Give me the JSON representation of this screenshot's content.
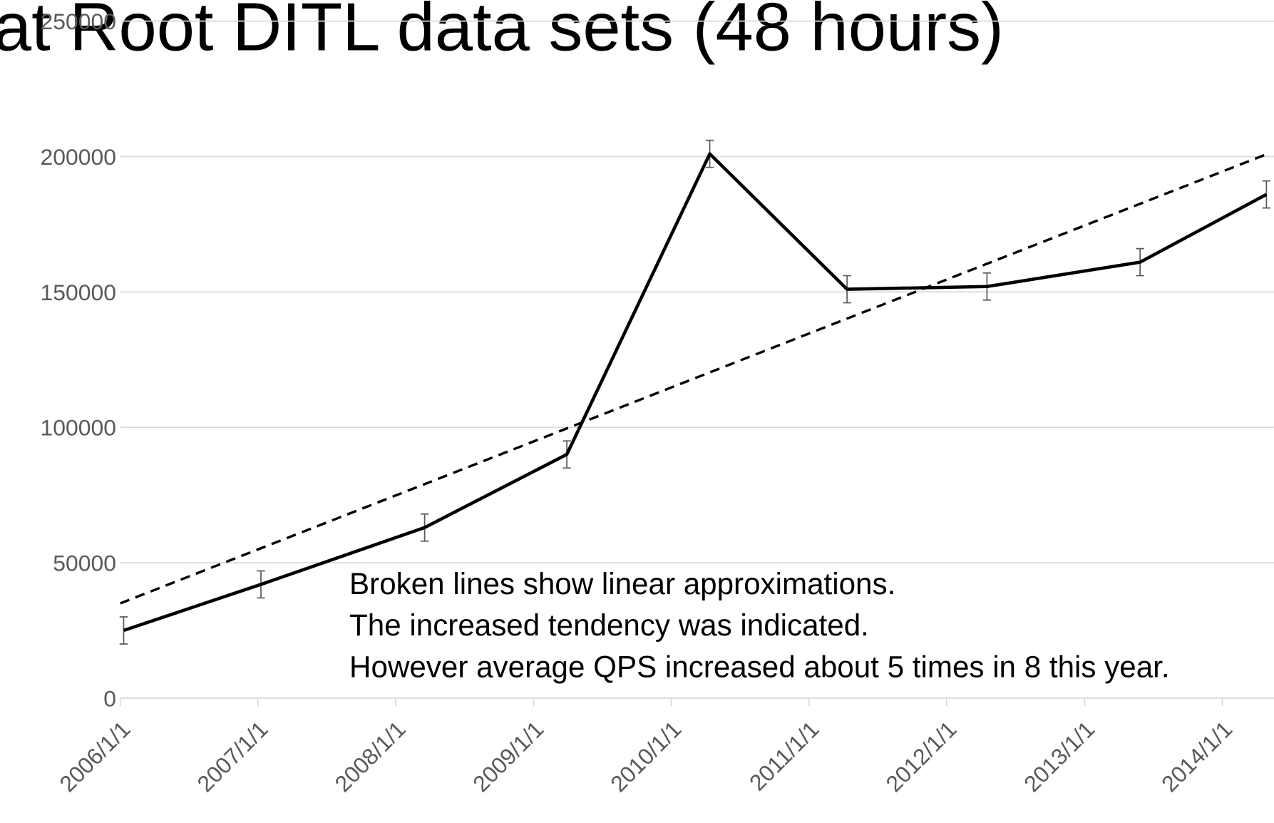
{
  "chart_data": {
    "type": "line",
    "title": "at Root DITL data sets (48 hours)",
    "x": [
      "2006-01-10",
      "2007-01-09",
      "2008-03-18",
      "2009-03-30",
      "2010-04-13",
      "2011-04-12",
      "2012-04-17",
      "2013-05-28",
      "2014-04-28"
    ],
    "values": [
      25000,
      42000,
      63000,
      90000,
      201000,
      151000,
      152000,
      161000,
      186000
    ],
    "errors": [
      5000,
      5000,
      5000,
      5000,
      5000,
      5000,
      5000,
      5000,
      5000
    ],
    "color": "#000000",
    "trendline": {
      "x": [
        "2006-01-01",
        "2014-05-01"
      ],
      "values": [
        35000,
        201000
      ],
      "dashed": true
    },
    "xlim": [
      "2006-01-01",
      "2014-05-18"
    ],
    "xticks": [
      {
        "value": "2006-01-01",
        "label": "2006/1/1"
      },
      {
        "value": "2007-01-01",
        "label": "2007/1/1"
      },
      {
        "value": "2008-01-01",
        "label": "2008/1/1"
      },
      {
        "value": "2009-01-01",
        "label": "2009/1/1"
      },
      {
        "value": "2010-01-01",
        "label": "2010/1/1"
      },
      {
        "value": "2011-01-01",
        "label": "2011/1/1"
      },
      {
        "value": "2012-01-01",
        "label": "2012/1/1"
      },
      {
        "value": "2013-01-01",
        "label": "2013/1/1"
      },
      {
        "value": "2014-01-01",
        "label": "2014/1/1"
      }
    ],
    "ylim": [
      0,
      250000
    ],
    "yticks": [
      0,
      50000,
      100000,
      150000,
      200000,
      250000
    ],
    "grid": true,
    "annotations": [
      "Broken lines show linear approximations.",
      "The increased tendency was indicated.",
      "However average QPS increased about 5 times in 8 this year."
    ]
  }
}
